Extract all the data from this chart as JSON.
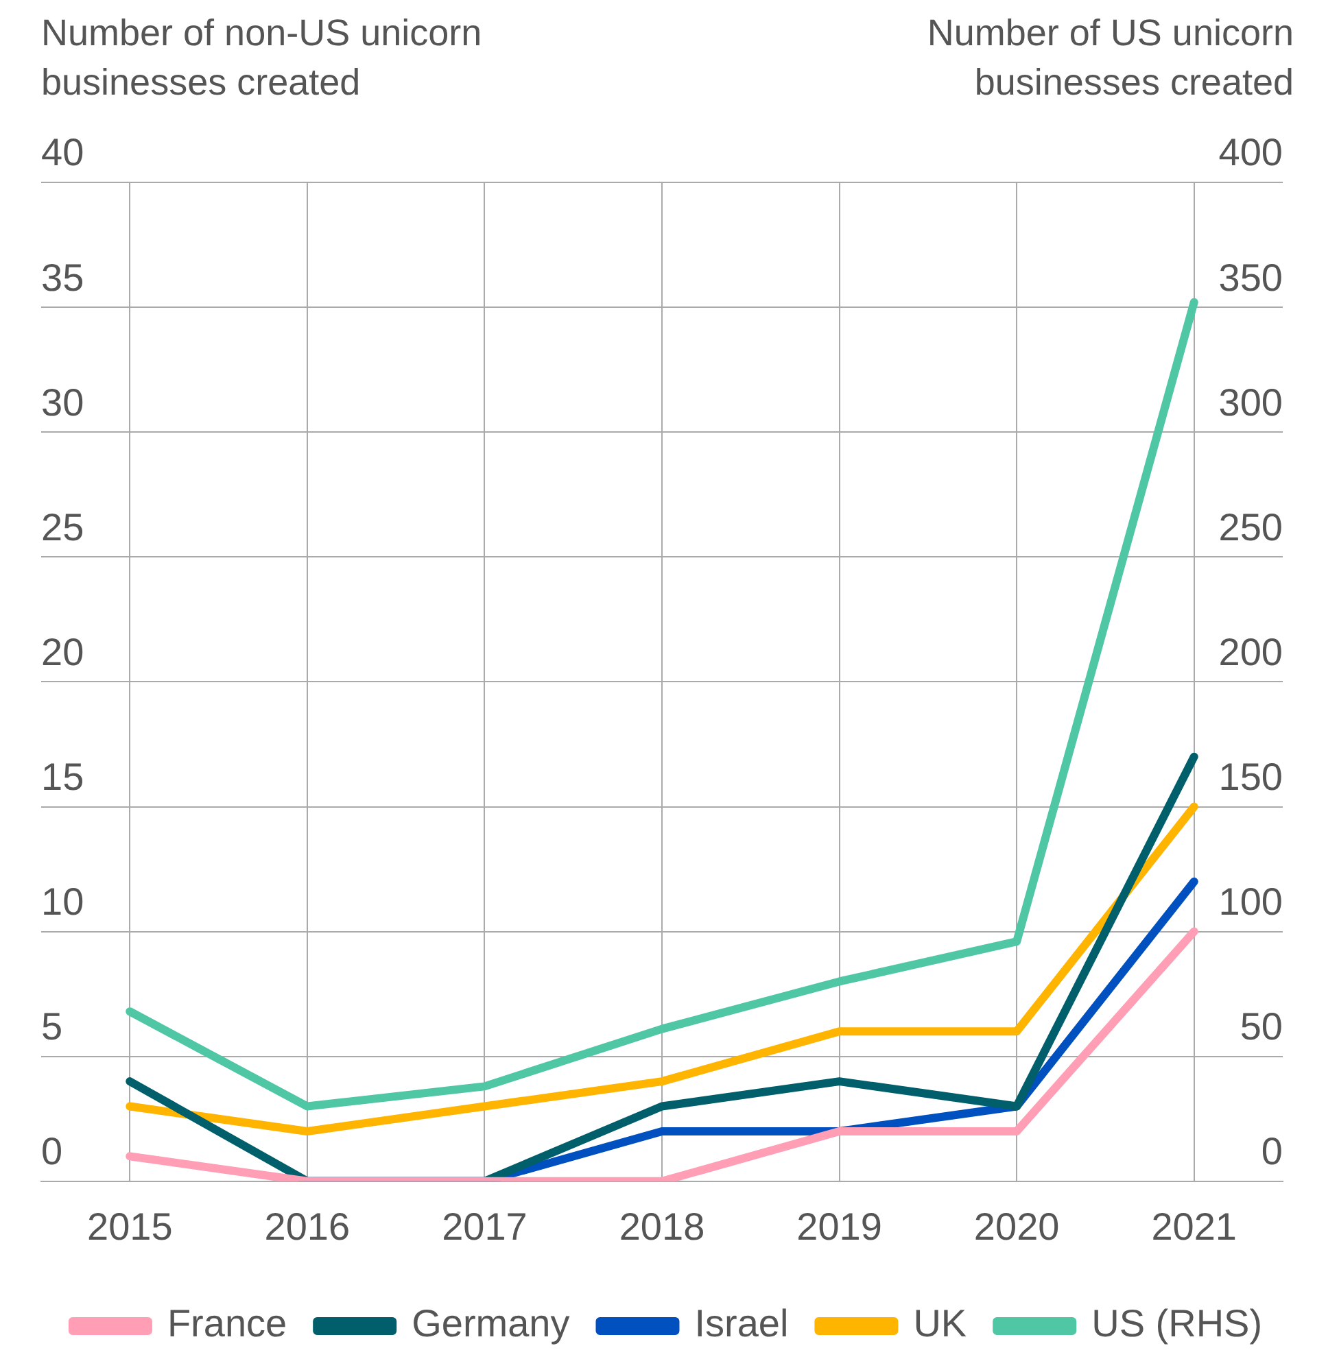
{
  "chart_data": {
    "type": "line",
    "ylabel": "Number of non-US unicorn businesses created",
    "y2label": "Number of US unicorn businesses created",
    "categories": [
      "2015",
      "2016",
      "2017",
      "2018",
      "2019",
      "2020",
      "2021"
    ],
    "series": [
      {
        "name": "France",
        "color": "#ff9eb5",
        "values": [
          1,
          0,
          0,
          0,
          2,
          2,
          10
        ]
      },
      {
        "name": "Germany",
        "color": "#005f6b",
        "values": [
          4,
          0,
          0,
          3,
          4,
          3,
          17
        ]
      },
      {
        "name": "Israel",
        "color": "#0050c0",
        "values": [
          null,
          0,
          0,
          2,
          2,
          3,
          12
        ]
      },
      {
        "name": "UK",
        "color": "#ffb400",
        "values": [
          3,
          2,
          3,
          4,
          6,
          6,
          15
        ]
      },
      {
        "name": "US (RHS)",
        "color": "#4fc7a5",
        "axis": "y2",
        "values": [
          68,
          30,
          38,
          61,
          80,
          96,
          352
        ]
      }
    ],
    "ylim": [
      0,
      40
    ],
    "yticks": [
      0,
      5,
      10,
      15,
      20,
      25,
      30,
      35,
      40
    ],
    "y2lim": [
      0,
      400
    ],
    "y2ticks": [
      0,
      50,
      100,
      150,
      200,
      250,
      300,
      350,
      400
    ],
    "grid": true,
    "legend": "bottom",
    "marker": "none",
    "line_style": "solid"
  }
}
